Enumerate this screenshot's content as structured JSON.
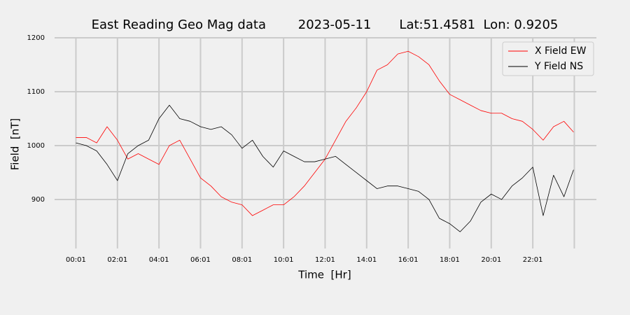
{
  "chart_data": {
    "type": "line",
    "title": "East Reading Geo Mag data        2023-05-11       Lat:51.4581  Lon: 0.9205",
    "x_label": "Time  [Hr]",
    "y_label": "Field  [nT]",
    "x": [
      0.0167,
      0.5167,
      1.0167,
      1.5167,
      2.0167,
      2.5167,
      3.0167,
      3.5167,
      4.0167,
      4.5167,
      5.0167,
      5.5167,
      6.0167,
      6.5167,
      7.0167,
      7.5167,
      8.0167,
      8.5167,
      9.0167,
      9.5167,
      10.0167,
      10.5167,
      11.0167,
      11.5167,
      12.0167,
      12.5167,
      13.0167,
      13.5167,
      14.0167,
      14.5167,
      15.0167,
      15.5167,
      16.0167,
      16.5167,
      17.0167,
      17.5167,
      18.0167,
      18.5167,
      19.0167,
      19.5167,
      20.0167,
      20.5167,
      21.0167,
      21.5167,
      22.0167,
      22.5167,
      23.0167,
      23.5167,
      23.98
    ],
    "series": [
      {
        "name": "X Field EW",
        "color": "#ff0000",
        "values": [
          1015,
          1015,
          1005,
          1035,
          1010,
          975,
          985,
          975,
          965,
          1000,
          1010,
          975,
          940,
          925,
          905,
          895,
          890,
          870,
          880,
          890,
          890,
          905,
          925,
          950,
          975,
          1010,
          1045,
          1070,
          1100,
          1140,
          1150,
          1170,
          1175,
          1165,
          1150,
          1120,
          1095,
          1085,
          1075,
          1065,
          1060,
          1060,
          1050,
          1045,
          1030,
          1010,
          1035,
          1045,
          1025
        ]
      },
      {
        "name": "Y Field NS",
        "color": "#000000",
        "values": [
          1005,
          1000,
          990,
          965,
          935,
          985,
          1000,
          1010,
          1050,
          1075,
          1050,
          1045,
          1035,
          1030,
          1035,
          1020,
          995,
          1010,
          980,
          960,
          990,
          980,
          970,
          970,
          975,
          980,
          965,
          950,
          935,
          920,
          925,
          925,
          920,
          915,
          900,
          865,
          855,
          840,
          860,
          895,
          910,
          900,
          925,
          940,
          960,
          870,
          945,
          905,
          955
        ]
      }
    ],
    "xlim": [
      -1.01,
      25.08
    ],
    "xticks": [
      {
        "value": 0.0167,
        "label": "00:01"
      },
      {
        "value": 2.0167,
        "label": "02:01"
      },
      {
        "value": 4.0167,
        "label": "04:01"
      },
      {
        "value": 6.0167,
        "label": "06:01"
      },
      {
        "value": 8.0167,
        "label": "08:01"
      },
      {
        "value": 10.0167,
        "label": "10:01"
      },
      {
        "value": 12.0167,
        "label": "12:01"
      },
      {
        "value": 14.0167,
        "label": "14:01"
      },
      {
        "value": 16.0167,
        "label": "16:01"
      },
      {
        "value": 18.0167,
        "label": "18:01"
      },
      {
        "value": 20.0167,
        "label": "20:01"
      },
      {
        "value": 22.0167,
        "label": "22:01"
      },
      {
        "value": 24.0167,
        "label": null
      }
    ],
    "ylim": [
      809,
      1200
    ],
    "yticks": [
      900,
      1000,
      1100,
      1200
    ],
    "grid": true,
    "legend": "upper right"
  }
}
